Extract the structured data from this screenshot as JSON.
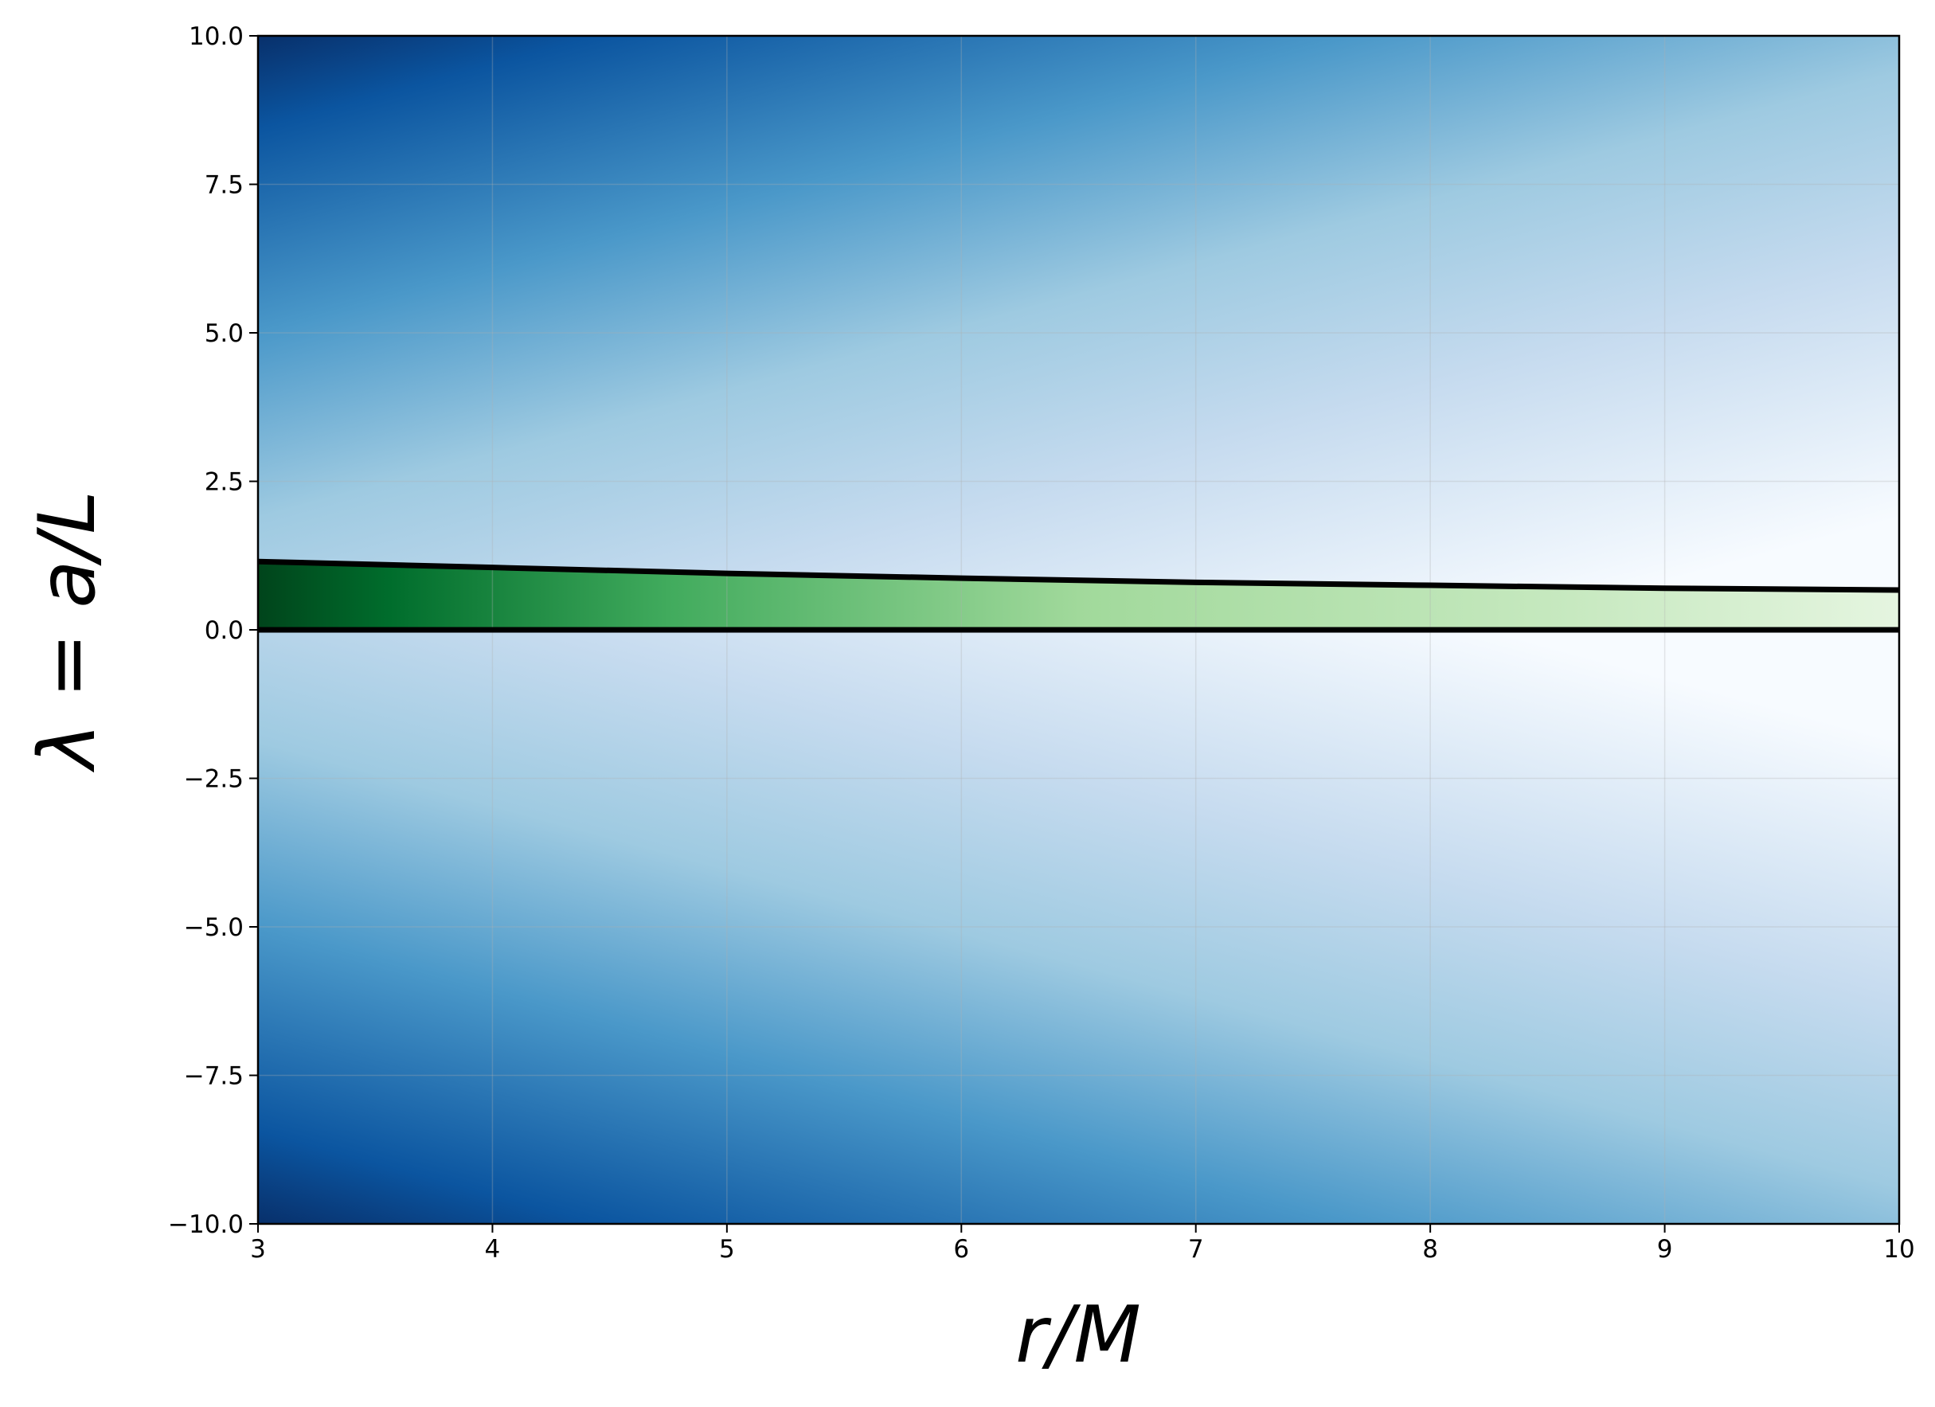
{
  "chart_data": {
    "type": "line",
    "xlabel": "r/M",
    "ylabel": "λ = a/L",
    "x": [
      3,
      4,
      5,
      6,
      7,
      8,
      9,
      10
    ],
    "series": [
      {
        "color": "#000000",
        "values": [
          1.15,
          1.05,
          0.95,
          0.87,
          0.8,
          0.75,
          0.7,
          0.67
        ]
      },
      {
        "color": "#000000",
        "values": [
          0,
          0,
          0,
          0,
          0,
          0,
          0,
          0
        ]
      }
    ],
    "xlim": [
      3,
      10
    ],
    "ylim": [
      -10,
      10
    ],
    "xticks": [
      3,
      4,
      5,
      6,
      7,
      8,
      9,
      10
    ],
    "yticks": [
      {
        "value": 10,
        "label": "10.0"
      },
      7.5,
      {
        "value": 5,
        "label": "5.0"
      },
      2.5,
      {
        "value": 0,
        "label": "0.0"
      },
      {
        "value": -2.5,
        "label": "−2.5"
      },
      {
        "value": -5,
        "label": "−5.0"
      },
      {
        "value": -7.5,
        "label": "−7.5"
      },
      {
        "value": -10,
        "label": "−10.0"
      }
    ],
    "grid": true
  }
}
